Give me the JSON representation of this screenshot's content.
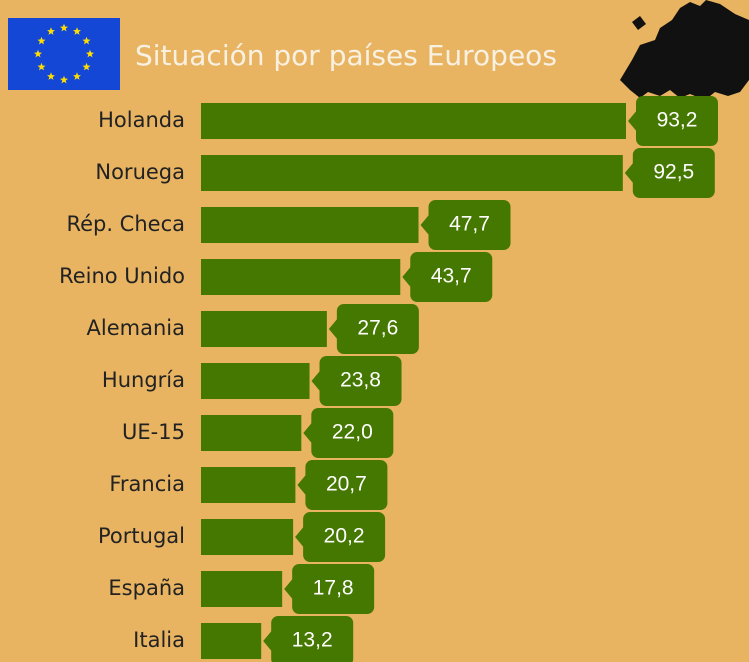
{
  "chart_data": {
    "type": "bar",
    "orientation": "horizontal",
    "title": "Situación por países Europeos",
    "categories": [
      "Holanda",
      "Noruega",
      "Rép. Checa",
      "Reino Unido",
      "Alemania",
      "Hungría",
      "UE-15",
      "Francia",
      "Portugal",
      "España",
      "Italia"
    ],
    "values": [
      93.2,
      92.5,
      47.7,
      43.7,
      27.6,
      23.8,
      22.0,
      20.7,
      20.2,
      17.8,
      13.2
    ],
    "value_labels": [
      "93,2",
      "92,5",
      "47,7",
      "43,7",
      "27,6",
      "23,8",
      "22,0",
      "20,7",
      "20,2",
      "17,8",
      "13,2"
    ],
    "color": "#457800"
  }
}
